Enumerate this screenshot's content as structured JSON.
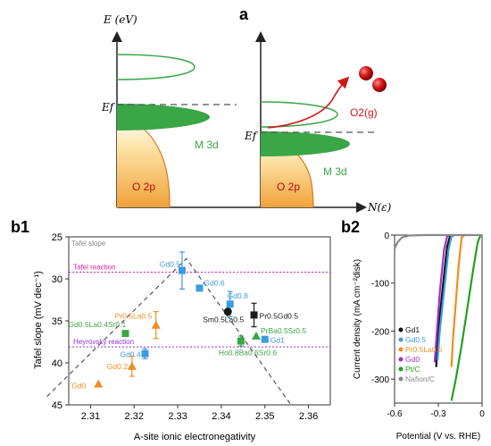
{
  "panel_a": {
    "label": "a",
    "y_axis": "E (eV)",
    "x_axis": "N(ε)",
    "ef": "Ef",
    "m3d": "M 3d",
    "o2p": "O 2p",
    "o2": "O2(g)",
    "colors": {
      "band_green": "#3aa645",
      "band_orange": "#f2a23a",
      "o2_red": "#d01818",
      "ef_line": "#555555"
    }
  },
  "chart_data": [
    {
      "type": "scatter",
      "panel_label": "b1",
      "xlabel": "A-site ionic electronegativity",
      "ylabel": "Tafel slope (mV dec⁻¹)",
      "xlim": [
        2.305,
        2.365
      ],
      "ylim": [
        45,
        25
      ],
      "y_inverted": true,
      "xticks": [
        2.31,
        2.32,
        2.33,
        2.34,
        2.35,
        2.36
      ],
      "yticks": [
        25,
        30,
        35,
        40,
        45
      ],
      "tick_labels_x": [
        "2.31",
        "2.32",
        "2.33",
        "2.34",
        "2.35",
        "2.36"
      ],
      "tick_labels_y": [
        "25",
        "30",
        "35",
        "40",
        "45"
      ],
      "reference_lines": [
        {
          "label": "Tafel slope",
          "y": null,
          "color": "#888888"
        },
        {
          "label": "Tafel reaction",
          "y": 29.2,
          "color": "#e0209a"
        },
        {
          "label": "Heyrovsky reaction",
          "y": 38.1,
          "color": "#9a2ad8"
        }
      ],
      "trend_line": [
        [
          2.3,
          44.0
        ],
        [
          2.332,
          27.6
        ],
        [
          2.356,
          45.0
        ]
      ],
      "points": [
        {
          "label": "Gd0.5",
          "x": 2.331,
          "y": 29.0,
          "err": 2.2,
          "shape": "square",
          "color": "#3d9be0"
        },
        {
          "label": "Gd0.6",
          "x": 2.335,
          "y": 31.1,
          "err": 0,
          "shape": "square",
          "color": "#3d9be0"
        },
        {
          "label": "Gd0.8",
          "x": 2.342,
          "y": 33.0,
          "err": 1.5,
          "shape": "square",
          "color": "#3d9be0"
        },
        {
          "label": "Sm0.5La0.5",
          "x": 2.3415,
          "y": 33.9,
          "err": 0,
          "shape": "circle",
          "color": "#1a1a1a"
        },
        {
          "label": "Pr0.5Gd0.5",
          "x": 2.3475,
          "y": 34.3,
          "err": 1.4,
          "shape": "square",
          "color": "#1a1a1a"
        },
        {
          "label": "Pr0.5La0.5",
          "x": 2.325,
          "y": 35.5,
          "err": 1.6,
          "shape": "triangle",
          "color": "#f28c1e"
        },
        {
          "label": "Gd0.5La0.4Sr0.1",
          "x": 2.318,
          "y": 36.5,
          "err": 0,
          "shape": "square",
          "color": "#3aa645"
        },
        {
          "label": "PrBa0.5Sr0.5",
          "x": 2.348,
          "y": 36.8,
          "err": 0,
          "shape": "triangle",
          "color": "#3aa645"
        },
        {
          "label": "Gd1",
          "x": 2.35,
          "y": 37.2,
          "err": 0,
          "shape": "square",
          "color": "#3d9be0"
        },
        {
          "label": "Ho0.8Ba0.6Sr0.6",
          "x": 2.3445,
          "y": 37.4,
          "err": 0.6,
          "shape": "square",
          "color": "#3aa645"
        },
        {
          "label": "Gd0.4",
          "x": 2.3225,
          "y": 38.9,
          "err": 0.6,
          "shape": "square",
          "color": "#3d9be0"
        },
        {
          "label": "Gd0.2",
          "x": 2.3195,
          "y": 40.4,
          "err": 1.2,
          "shape": "triangle",
          "color": "#f28c1e"
        },
        {
          "label": "Gd0",
          "x": 2.3118,
          "y": 42.5,
          "err": 0,
          "shape": "triangle",
          "color": "#f28c1e"
        }
      ]
    },
    {
      "type": "line",
      "panel_label": "b2",
      "xlabel": "Potential (V vs. RHE)",
      "ylabel": "Current density (mA cm⁻²disk)",
      "xlim": [
        -0.6,
        0
      ],
      "ylim": [
        -350,
        0
      ],
      "xticks": [
        -0.6,
        -0.3,
        0
      ],
      "yticks": [
        0,
        -100,
        -200,
        -300
      ],
      "tick_labels_x": [
        "-0.6",
        "-0.3",
        "0"
      ],
      "tick_labels_y": [
        "0",
        "-100",
        "-200",
        "-300"
      ],
      "legend_position": "bottom-left",
      "series": [
        {
          "name": "Gd1",
          "color": "#111111",
          "points": [
            [
              -0.2,
              0
            ],
            [
              -0.22,
              -2
            ],
            [
              -0.24,
              -25
            ],
            [
              -0.27,
              -110
            ],
            [
              -0.3,
              -200
            ],
            [
              -0.315,
              -275
            ]
          ]
        },
        {
          "name": "Gd0.5",
          "color": "#3d9be0",
          "points": [
            [
              -0.19,
              0
            ],
            [
              -0.21,
              -3
            ],
            [
              -0.23,
              -30
            ],
            [
              -0.26,
              -115
            ],
            [
              -0.29,
              -200
            ],
            [
              -0.305,
              -260
            ]
          ]
        },
        {
          "name": "Pr0.5La0.5",
          "color": "#f28c1e",
          "points": [
            [
              -0.12,
              0
            ],
            [
              -0.14,
              -5
            ],
            [
              -0.16,
              -60
            ],
            [
              -0.18,
              -140
            ],
            [
              -0.2,
              -220
            ],
            [
              -0.21,
              -275
            ]
          ]
        },
        {
          "name": "Gd0",
          "color": "#a033c8",
          "points": [
            [
              -0.22,
              0
            ],
            [
              -0.24,
              -3
            ],
            [
              -0.26,
              -30
            ],
            [
              -0.29,
              -120
            ],
            [
              -0.31,
              -200
            ],
            [
              -0.325,
              -265
            ]
          ]
        },
        {
          "name": "Pt/C",
          "color": "#22a022",
          "points": [
            [
              -0.01,
              0
            ],
            [
              -0.03,
              -15
            ],
            [
              -0.06,
              -70
            ],
            [
              -0.1,
              -150
            ],
            [
              -0.14,
              -230
            ],
            [
              -0.18,
              -300
            ],
            [
              -0.21,
              -345
            ]
          ]
        },
        {
          "name": "Nafion/C",
          "color": "#888888",
          "points": [
            [
              -0.6,
              -28
            ],
            [
              -0.58,
              -15
            ],
            [
              -0.55,
              -5
            ],
            [
              -0.5,
              -1
            ],
            [
              -0.4,
              0
            ],
            [
              0,
              0
            ]
          ]
        }
      ]
    }
  ]
}
